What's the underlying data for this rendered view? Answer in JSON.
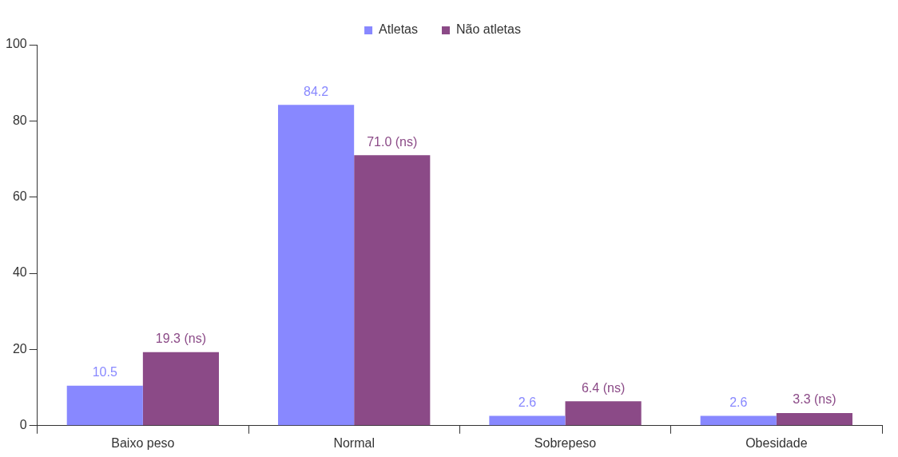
{
  "chart_data": {
    "type": "bar",
    "categories": [
      "Baixo peso",
      "Normal",
      "Sobrepeso",
      "Obesidade"
    ],
    "series": [
      {
        "name": "Atletas",
        "color": "#8888ff",
        "values": [
          10.5,
          84.2,
          2.6,
          2.6
        ],
        "value_labels": [
          "10.5",
          "84.2",
          "2.6",
          "2.6"
        ]
      },
      {
        "name": "Não atletas",
        "color": "#8b4a87",
        "values": [
          19.3,
          71.0,
          6.4,
          3.3
        ],
        "value_labels": [
          "19.3 (ns)",
          "71.0 (ns)",
          "6.4 (ns)",
          "3.3 (ns)"
        ]
      }
    ],
    "ylim": [
      0,
      100
    ],
    "yticks": [
      0,
      20,
      40,
      60,
      80,
      100
    ],
    "grid": false,
    "legend": "top"
  }
}
